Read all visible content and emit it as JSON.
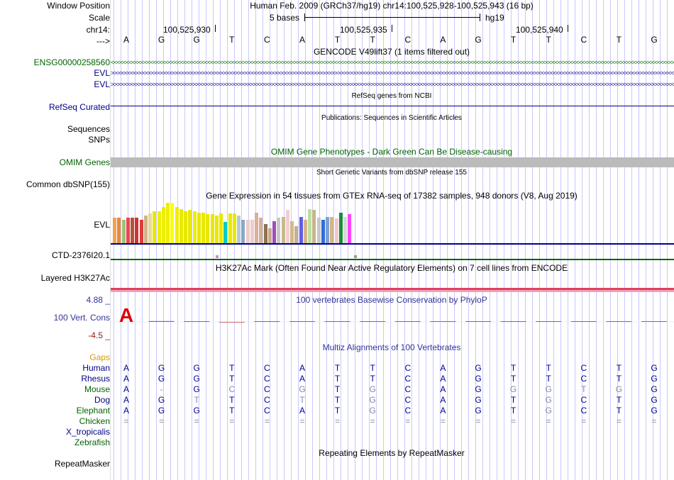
{
  "header": {
    "window_position_label": "Window Position",
    "window_position_value": "Human Feb. 2009 (GRCh37/hg19)   chr14:100,525,928-100,525,943 (16 bp)",
    "scale_label": "Scale",
    "scale_text": "5 bases",
    "scale_assembly": "hg19",
    "chrom_label": "chr14:",
    "coord_labels": [
      "100,525,930",
      "100,525,935",
      "100,525,940"
    ],
    "strand_label": "--->"
  },
  "sequence": [
    "A",
    "G",
    "G",
    "T",
    "C",
    "A",
    "T",
    "T",
    "C",
    "A",
    "G",
    "T",
    "T",
    "C",
    "T",
    "G"
  ],
  "gencode": {
    "title": "GENCODE V49lift37 (1 items filtered out)",
    "rows": [
      "ENSG00000258560",
      "EVL",
      "EVL"
    ],
    "colors": {
      "ensg": "#006400",
      "evl": "#00008b"
    }
  },
  "refseq": {
    "title": "RefSeq genes from NCBI",
    "label": "RefSeq Curated"
  },
  "publications": {
    "title": "Publications: Sequences in Scientific Articles",
    "labels": [
      "Sequences",
      "SNPs"
    ]
  },
  "omim": {
    "title": "OMIM Gene Phenotypes - Dark Green Can Be Disease-causing",
    "label": "OMIM Genes"
  },
  "dbsnp": {
    "title": "Short Genetic Variants from dbSNP release 155",
    "label": "Common dbSNP(155)"
  },
  "gtex": {
    "title": "Gene Expression in 54 tissues from GTEx RNA-seq of 17382 samples, 948 donors (V8, Aug 2019)",
    "label": "EVL",
    "values": [
      0.6,
      0.6,
      0.55,
      0.6,
      0.6,
      0.6,
      0.55,
      0.65,
      0.7,
      0.75,
      0.75,
      0.85,
      0.95,
      0.95,
      0.85,
      0.8,
      0.75,
      0.78,
      0.75,
      0.72,
      0.72,
      0.68,
      0.68,
      0.65,
      0.7,
      0.5,
      0.7,
      0.7,
      0.65,
      0.55,
      0.55,
      0.55,
      0.72,
      0.6,
      0.45,
      0.35,
      0.52,
      0.6,
      0.62,
      0.78,
      0.52,
      0.4,
      0.62,
      0.55,
      0.8,
      0.78,
      0.6,
      0.55,
      0.62,
      0.62,
      0.58,
      0.72,
      0.62,
      0.68
    ],
    "colors": [
      "#f6a04d",
      "#e88a3c",
      "#9dc07c",
      "#e6484f",
      "#b6513c",
      "#cc3333",
      "#e03b3b",
      "#d2b48c",
      "#e8d6a0",
      "#e8e800",
      "#eeee00",
      "#eeee00",
      "#eeee00",
      "#ffff00",
      "#eeee00",
      "#e8e800",
      "#e8e800",
      "#e8e800",
      "#eeee00",
      "#e8e800",
      "#e8e800",
      "#e8e800",
      "#e8e800",
      "#e8e800",
      "#e8e800",
      "#00cccc",
      "#e8e800",
      "#e8e800",
      "#b4c8e0",
      "#88a8c8",
      "#eecccc",
      "#eecccc",
      "#d8b0a0",
      "#d2b48c",
      "#8b7355",
      "#c8a888",
      "#9e4fb8",
      "#c8c8c8",
      "#c8b890",
      "#f0d0d0",
      "#d0b890",
      "#c8b08a",
      "#6060e0",
      "#d8b48c",
      "#b8e0a0",
      "#c8b48c",
      "#c8c8c8",
      "#2e6ee0",
      "#7fa0d0",
      "#d2b48c",
      "#f0c8c8",
      "#1a8c3c",
      "#d8d8d8",
      "#ff44ff"
    ]
  },
  "ctd": {
    "label": "CTD-2376I20.1"
  },
  "h3k27ac": {
    "title": "H3K27Ac Mark (Often Found Near Active Regulatory Elements) on 7 cell lines from ENCODE",
    "label": "Layered H3K27Ac"
  },
  "phylop": {
    "title": "100 vertebrates Basewise Conservation by PhyloP",
    "label": "100 Vert. Cons",
    "max_label": "4.88 _",
    "min_label": "-4.5 _",
    "values": [
      4.2,
      0.2,
      0.0,
      -0.05,
      0.1,
      0.0,
      0.0,
      0.0,
      0.1,
      0.0,
      0.0,
      0.0,
      0.0,
      0.0,
      0.1,
      0.0
    ]
  },
  "multiz": {
    "title": "Multiz Alignments of 100 Vertebrates",
    "gaps_label": "Gaps",
    "species": [
      {
        "name": "Human",
        "color": "#00008b",
        "bases": [
          "A",
          "G",
          "G",
          "T",
          "C",
          "A",
          "T",
          "T",
          "C",
          "A",
          "G",
          "T",
          "T",
          "C",
          "T",
          "G"
        ]
      },
      {
        "name": "Rhesus",
        "color": "#00008b",
        "bases": [
          "A",
          "G",
          "G",
          "T",
          "C",
          "A",
          "T",
          "T",
          "C",
          "A",
          "G",
          "T",
          "T",
          "C",
          "T",
          "G"
        ]
      },
      {
        "name": "Mouse",
        "color": "#006400",
        "bases": [
          "A",
          "-",
          "G",
          "C",
          "C",
          "G",
          "T",
          "G",
          "C",
          "A",
          "G",
          "G",
          "G",
          "T",
          "G",
          "G"
        ]
      },
      {
        "name": "Dog",
        "color": "#00008b",
        "bases": [
          "A",
          "G",
          "T",
          "T",
          "C",
          "T",
          "T",
          "G",
          "C",
          "A",
          "G",
          "T",
          "G",
          "C",
          "T",
          "G"
        ]
      },
      {
        "name": "Elephant",
        "color": "#006400",
        "bases": [
          "A",
          "G",
          "G",
          "T",
          "C",
          "A",
          "T",
          "G",
          "C",
          "A",
          "G",
          "T",
          "G",
          "C",
          "T",
          "G"
        ]
      },
      {
        "name": "Chicken",
        "color": "#006400",
        "bases": [
          "=",
          "=",
          "=",
          "=",
          "=",
          "=",
          "=",
          "=",
          "=",
          "=",
          "=",
          "=",
          "=",
          "=",
          "=",
          "="
        ]
      },
      {
        "name": "X_tropicalis",
        "color": "#00008b",
        "bases": []
      },
      {
        "name": "Zebrafish",
        "color": "#006400",
        "bases": []
      }
    ],
    "mismatch_color": "#8888aa"
  },
  "repeatmasker": {
    "title": "Repeating Elements by RepeatMasker",
    "label": "RepeatMasker"
  }
}
